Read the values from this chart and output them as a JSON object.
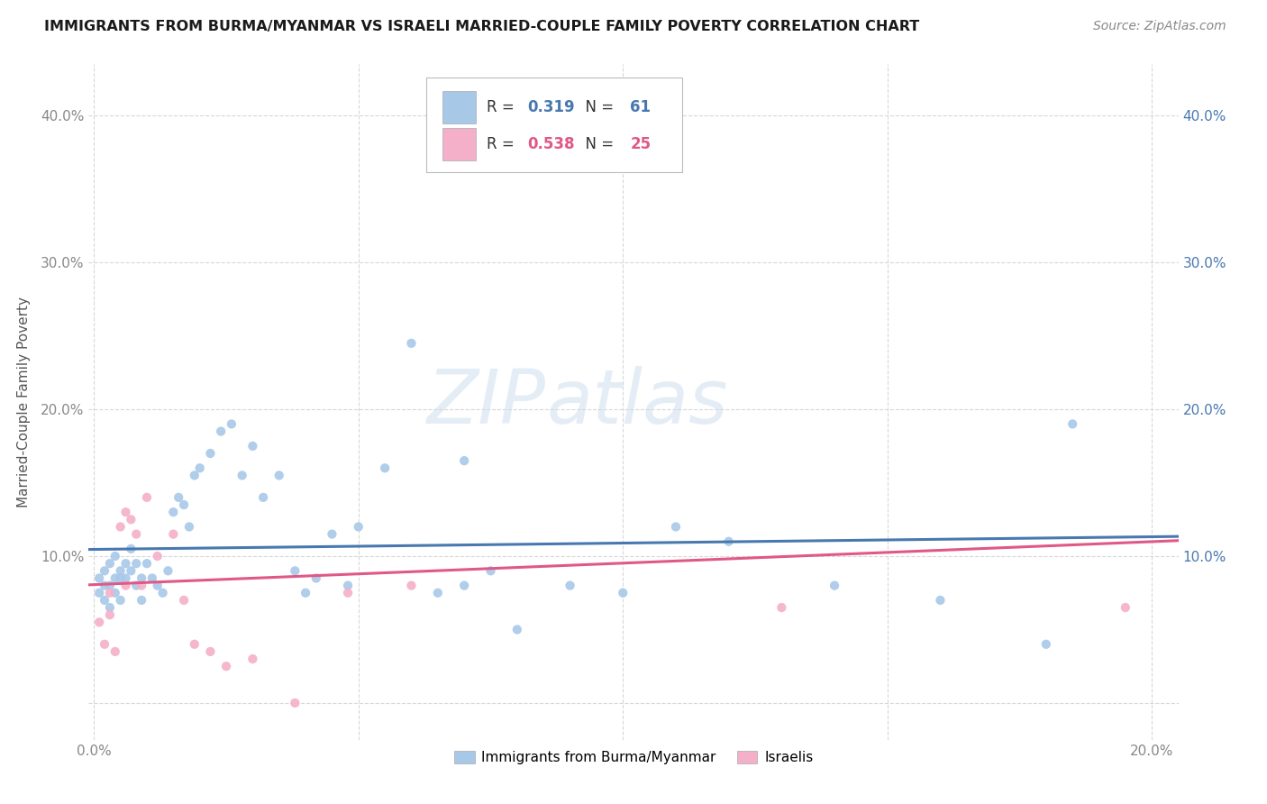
{
  "title": "IMMIGRANTS FROM BURMA/MYANMAR VS ISRAELI MARRIED-COUPLE FAMILY POVERTY CORRELATION CHART",
  "source": "Source: ZipAtlas.com",
  "ylabel": "Married-Couple Family Poverty",
  "watermark": "ZIPatlas",
  "xlim": [
    -0.001,
    0.205
  ],
  "ylim": [
    -0.025,
    0.435
  ],
  "xticks": [
    0.0,
    0.05,
    0.1,
    0.15,
    0.2
  ],
  "yticks": [
    0.0,
    0.1,
    0.2,
    0.3,
    0.4
  ],
  "xtick_labels": [
    "0.0%",
    "",
    "",
    "",
    "20.0%"
  ],
  "ytick_labels": [
    "",
    "10.0%",
    "20.0%",
    "30.0%",
    "40.0%"
  ],
  "blue_color": "#a8c8e8",
  "pink_color": "#f4b0c8",
  "blue_line_color": "#4878b0",
  "pink_line_color": "#e05888",
  "r_blue": "0.319",
  "n_blue": "61",
  "r_pink": "0.538",
  "n_pink": "25",
  "legend_label_blue": "Immigrants from Burma/Myanmar",
  "legend_label_pink": "Israelis",
  "blue_r_color": "#4878b0",
  "pink_r_color": "#e05888",
  "background_color": "#ffffff",
  "grid_color": "#d8d8d8",
  "watermark_color": "#c5d8ed",
  "blue_x": [
    0.001,
    0.001,
    0.002,
    0.002,
    0.002,
    0.003,
    0.003,
    0.003,
    0.004,
    0.004,
    0.004,
    0.005,
    0.005,
    0.005,
    0.006,
    0.006,
    0.007,
    0.007,
    0.008,
    0.008,
    0.009,
    0.009,
    0.01,
    0.011,
    0.012,
    0.013,
    0.014,
    0.015,
    0.016,
    0.017,
    0.018,
    0.019,
    0.02,
    0.022,
    0.024,
    0.026,
    0.028,
    0.03,
    0.032,
    0.035,
    0.038,
    0.04,
    0.042,
    0.045,
    0.048,
    0.05,
    0.055,
    0.06,
    0.065,
    0.07,
    0.075,
    0.08,
    0.09,
    0.1,
    0.11,
    0.12,
    0.14,
    0.16,
    0.18,
    0.185,
    0.07
  ],
  "blue_y": [
    0.075,
    0.085,
    0.07,
    0.09,
    0.08,
    0.065,
    0.08,
    0.095,
    0.075,
    0.085,
    0.1,
    0.07,
    0.085,
    0.09,
    0.085,
    0.095,
    0.09,
    0.105,
    0.08,
    0.095,
    0.07,
    0.085,
    0.095,
    0.085,
    0.08,
    0.075,
    0.09,
    0.13,
    0.14,
    0.135,
    0.12,
    0.155,
    0.16,
    0.17,
    0.185,
    0.19,
    0.155,
    0.175,
    0.14,
    0.155,
    0.09,
    0.075,
    0.085,
    0.115,
    0.08,
    0.12,
    0.16,
    0.245,
    0.075,
    0.08,
    0.09,
    0.05,
    0.08,
    0.075,
    0.12,
    0.11,
    0.08,
    0.07,
    0.04,
    0.19,
    0.165
  ],
  "pink_x": [
    0.001,
    0.002,
    0.003,
    0.003,
    0.004,
    0.005,
    0.006,
    0.006,
    0.007,
    0.008,
    0.009,
    0.01,
    0.012,
    0.015,
    0.017,
    0.019,
    0.022,
    0.025,
    0.03,
    0.038,
    0.048,
    0.06,
    0.075,
    0.13,
    0.195
  ],
  "pink_y": [
    0.055,
    0.04,
    0.06,
    0.075,
    0.035,
    0.12,
    0.08,
    0.13,
    0.125,
    0.115,
    0.08,
    0.14,
    0.1,
    0.115,
    0.07,
    0.04,
    0.035,
    0.025,
    0.03,
    0.0,
    0.075,
    0.08,
    0.37,
    0.065,
    0.065
  ]
}
